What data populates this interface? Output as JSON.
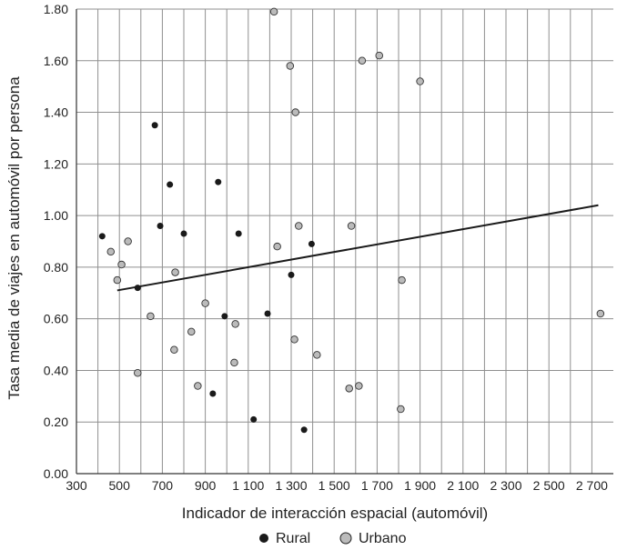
{
  "chart_data": {
    "type": "scatter",
    "xlabel": "Indicador de interacción espacial (automóvil)",
    "ylabel": "Tasa media de viajes en automóvil por persona",
    "xlim": [
      300,
      2800
    ],
    "ylim": [
      0,
      1.8
    ],
    "x_ticks": [
      300,
      500,
      700,
      900,
      1100,
      1300,
      1500,
      1700,
      1900,
      2100,
      2300,
      2500,
      2700
    ],
    "x_tick_labels": [
      "300",
      "500",
      "700",
      "900",
      "1 100",
      "1 300",
      "1 500",
      "1 700",
      "1 900",
      "2 100",
      "2 300",
      "2 500",
      "2 700"
    ],
    "y_ticks": [
      0,
      0.2,
      0.4,
      0.6,
      0.8,
      1.0,
      1.2,
      1.4,
      1.6,
      1.8
    ],
    "y_tick_labels": [
      "0.00",
      "0.20",
      "0.40",
      "0.60",
      "0.80",
      "1.00",
      "1.20",
      "1.40",
      "1.60",
      "1.80"
    ],
    "grid": true,
    "legend_position": "bottom",
    "series": [
      {
        "name": "Rural",
        "color": "#1a1a1a",
        "points": [
          {
            "x": 420,
            "y": 0.92
          },
          {
            "x": 585,
            "y": 0.72
          },
          {
            "x": 665,
            "y": 1.35
          },
          {
            "x": 690,
            "y": 0.96
          },
          {
            "x": 735,
            "y": 1.12
          },
          {
            "x": 800,
            "y": 0.93
          },
          {
            "x": 935,
            "y": 0.31
          },
          {
            "x": 960,
            "y": 1.13
          },
          {
            "x": 990,
            "y": 0.61
          },
          {
            "x": 1055,
            "y": 0.93
          },
          {
            "x": 1125,
            "y": 0.21
          },
          {
            "x": 1190,
            "y": 0.62
          },
          {
            "x": 1300,
            "y": 0.77
          },
          {
            "x": 1360,
            "y": 0.17
          },
          {
            "x": 1395,
            "y": 0.89
          }
        ]
      },
      {
        "name": "Urbano",
        "color": "#bbbbbb",
        "points": [
          {
            "x": 460,
            "y": 0.86
          },
          {
            "x": 490,
            "y": 0.75
          },
          {
            "x": 510,
            "y": 0.81
          },
          {
            "x": 540,
            "y": 0.9
          },
          {
            "x": 585,
            "y": 0.39
          },
          {
            "x": 645,
            "y": 0.61
          },
          {
            "x": 755,
            "y": 0.48
          },
          {
            "x": 760,
            "y": 0.78
          },
          {
            "x": 835,
            "y": 0.55
          },
          {
            "x": 865,
            "y": 0.34
          },
          {
            "x": 900,
            "y": 0.66
          },
          {
            "x": 1035,
            "y": 0.43
          },
          {
            "x": 1040,
            "y": 0.58
          },
          {
            "x": 1220,
            "y": 1.79
          },
          {
            "x": 1235,
            "y": 0.88
          },
          {
            "x": 1295,
            "y": 1.58
          },
          {
            "x": 1315,
            "y": 0.52
          },
          {
            "x": 1320,
            "y": 1.4
          },
          {
            "x": 1335,
            "y": 0.96
          },
          {
            "x": 1420,
            "y": 0.46
          },
          {
            "x": 1570,
            "y": 0.33
          },
          {
            "x": 1580,
            "y": 0.96
          },
          {
            "x": 1615,
            "y": 0.34
          },
          {
            "x": 1630,
            "y": 1.6
          },
          {
            "x": 1710,
            "y": 1.62
          },
          {
            "x": 1810,
            "y": 0.25
          },
          {
            "x": 1815,
            "y": 0.75
          },
          {
            "x": 1900,
            "y": 1.52
          },
          {
            "x": 2740,
            "y": 0.62
          }
        ]
      }
    ],
    "trendline": {
      "x": [
        490,
        2730
      ],
      "y": [
        0.71,
        1.04
      ]
    }
  }
}
